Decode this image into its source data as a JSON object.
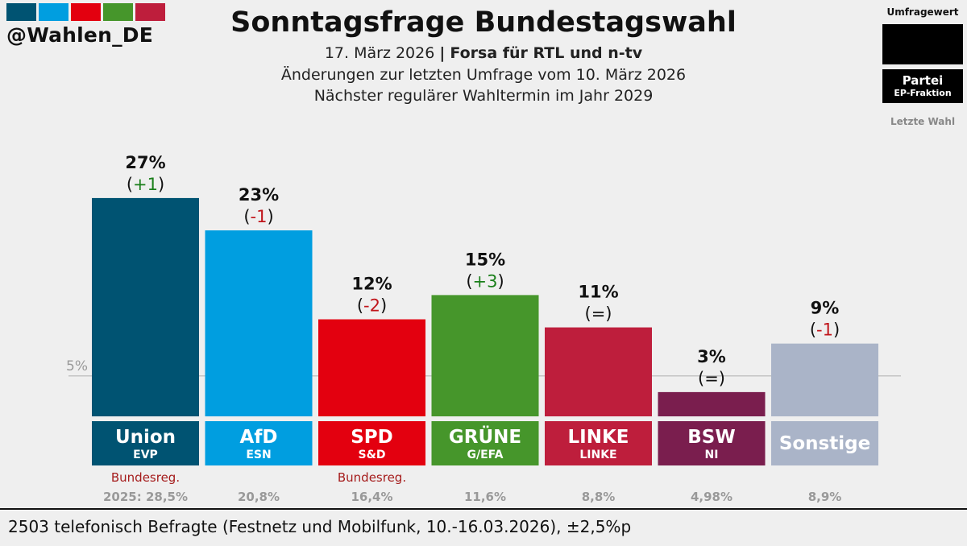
{
  "brand": {
    "handle": "@Wahlen_DE",
    "stripe_colors": [
      "#005372",
      "#009ee0",
      "#e3000f",
      "#46962b",
      "#be1e3c"
    ]
  },
  "header": {
    "title": "Sonntagsfrage Bundestagswahl",
    "date": "17. März 2026",
    "separator": "|",
    "pollster": "Forsa für RTL und n-tv",
    "change_note": "Änderungen zur letzten Umfrage vom 10. März 2026",
    "next_election": "Nächster regulärer Wahltermin im Jahr 2029"
  },
  "legend": {
    "title": "Umfragewert",
    "party": "Partei",
    "group": "EP-Fraktion",
    "last": "Letzte Wahl"
  },
  "chart_data": {
    "type": "bar",
    "title": "Sonntagsfrage Bundestagswahl",
    "ylim": [
      0,
      27
    ],
    "threshold": 5,
    "threshold_label": "5%",
    "grid": false,
    "legend": "top-right",
    "categories": [
      "Union",
      "AfD",
      "SPD",
      "GRÜNE",
      "LINKE",
      "BSW",
      "Sonstige"
    ],
    "groups": [
      "EVP",
      "ESN",
      "S&D",
      "G/EFA",
      "LINKE",
      "NI",
      ""
    ],
    "values": [
      27,
      23,
      12,
      15,
      11,
      3,
      9
    ],
    "value_labels": [
      "27%",
      "23%",
      "12%",
      "15%",
      "11%",
      "3%",
      "9%"
    ],
    "changes": [
      "+1",
      "-1",
      "-2",
      "+3",
      "=",
      "=",
      "-1"
    ],
    "colors": [
      "#005372",
      "#009ee0",
      "#e3000f",
      "#46962b",
      "#be1e3c",
      "#7a1e4e",
      "#aab4c8"
    ],
    "last_election": [
      "2025: 28,5%",
      "20,8%",
      "16,4%",
      "11,6%",
      "8,8%",
      "4,98%",
      "8,9%"
    ],
    "notes": [
      "Bundesreg.",
      "",
      "Bundesreg.",
      "",
      "",
      "",
      ""
    ]
  },
  "footer": {
    "text": "2503 telefonisch Befragte (Festnetz und Mobilfunk, 10.-16.03.2026), ±2,5%p"
  }
}
